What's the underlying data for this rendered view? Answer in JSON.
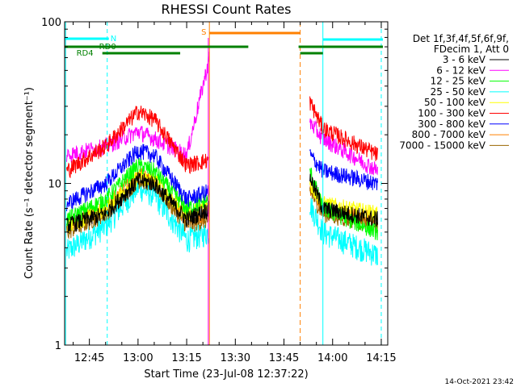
{
  "chart_data": {
    "type": "line",
    "title": "RHESSI Count Rates",
    "xlabel": "Start Time (23-Jul-08 12:37:22)",
    "ylabel": "Count Rate (s⁻¹ detector segment⁻¹)",
    "yscale": "log",
    "ylim": [
      1,
      100
    ],
    "xlim": [
      "12:37:22",
      "14:17:00"
    ],
    "x_ticks": [
      "12:45",
      "13:00",
      "13:15",
      "13:30",
      "13:45",
      "14:00",
      "14:15"
    ],
    "y_ticks": [
      "1",
      "10",
      "100"
    ],
    "legend_header": [
      "Det 1f,3f,4f,5f,6f,9f,",
      "FDecim 1, Att 0"
    ],
    "legend_position": "right",
    "timestamp": "14-Oct-2021 23:42",
    "series": [
      {
        "name": "3 - 6 keV",
        "color": "#000000",
        "x": [
          "12:38",
          "12:50",
          "13:00",
          "13:05",
          "13:15",
          "13:22",
          "13:53",
          "13:57",
          "14:14"
        ],
        "values": [
          5.5,
          6.5,
          10.5,
          10.0,
          6.0,
          7.0,
          11.0,
          7.0,
          6.0
        ]
      },
      {
        "name": "6 - 12 keV",
        "color": "#ff00ff",
        "x": [
          "12:38",
          "12:50",
          "13:00",
          "13:05",
          "13:15",
          "13:22",
          "13:53",
          "13:57",
          "14:14"
        ],
        "values": [
          15.0,
          17.0,
          21.0,
          19.0,
          15.0,
          60.0,
          24.0,
          19.0,
          12.0
        ]
      },
      {
        "name": "12 - 25 keV",
        "color": "#00ff00",
        "x": [
          "12:38",
          "12:50",
          "13:00",
          "13:05",
          "13:15",
          "13:22",
          "13:53",
          "13:57",
          "14:14"
        ],
        "values": [
          6.0,
          8.0,
          13.0,
          12.0,
          7.0,
          8.0,
          12.0,
          7.0,
          5.0
        ]
      },
      {
        "name": "25 - 50 keV",
        "color": "#00ffff",
        "x": [
          "12:38",
          "12:50",
          "13:00",
          "13:05",
          "13:15",
          "13:22",
          "13:53",
          "13:57",
          "14:14"
        ],
        "values": [
          3.8,
          5.5,
          9.5,
          8.5,
          4.5,
          5.0,
          7.5,
          5.0,
          3.6
        ]
      },
      {
        "name": "50 - 100 keV",
        "color": "#ffff00",
        "x": [
          "12:38",
          "12:50",
          "13:00",
          "13:05",
          "13:15",
          "13:22",
          "13:53",
          "13:57",
          "14:14"
        ],
        "values": [
          5.5,
          7.0,
          11.0,
          10.5,
          6.5,
          7.5,
          10.0,
          7.5,
          6.5
        ]
      },
      {
        "name": "100 - 300 keV",
        "color": "#ff0000",
        "x": [
          "12:38",
          "12:50",
          "13:00",
          "13:05",
          "13:15",
          "13:22",
          "13:53",
          "13:57",
          "14:14"
        ],
        "values": [
          12.0,
          17.0,
          28.0,
          25.0,
          13.0,
          14.0,
          32.0,
          22.0,
          15.0
        ]
      },
      {
        "name": "300 - 800 keV",
        "color": "#0000ff",
        "x": [
          "12:38",
          "12:50",
          "13:00",
          "13:05",
          "13:15",
          "13:22",
          "13:53",
          "13:57",
          "14:14"
        ],
        "values": [
          7.5,
          10.0,
          16.0,
          15.0,
          8.0,
          9.0,
          15.0,
          12.0,
          10.0
        ]
      },
      {
        "name": "800 - 7000 keV",
        "color": "#ff8000",
        "x": [
          "12:38",
          "12:50",
          "13:00",
          "13:05",
          "13:15",
          "13:22",
          "13:53",
          "13:57",
          "14:14"
        ],
        "values": [
          5.5,
          7.0,
          11.5,
          10.5,
          6.0,
          6.5,
          9.5,
          7.0,
          6.0
        ]
      },
      {
        "name": "7000 - 15000 keV",
        "color": "#996600",
        "x": [
          "12:38",
          "12:50",
          "13:00",
          "13:05",
          "13:15",
          "13:22",
          "13:53",
          "13:57",
          "14:14"
        ],
        "values": [
          5.0,
          6.5,
          10.5,
          10.0,
          5.5,
          6.0,
          9.0,
          6.5,
          5.5
        ]
      }
    ],
    "annotations": {
      "N_label": "N",
      "RD0_label": "RD0",
      "RD4_label": "RD4",
      "S_label": "S"
    }
  }
}
